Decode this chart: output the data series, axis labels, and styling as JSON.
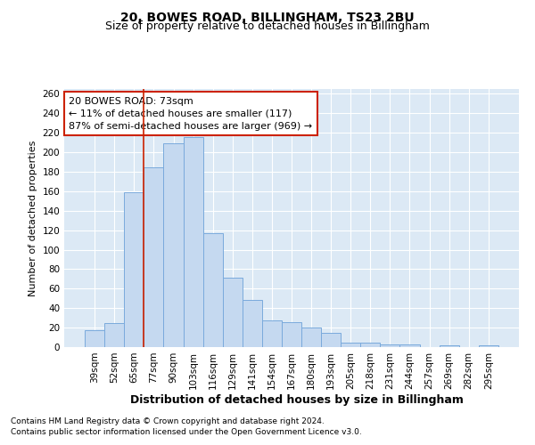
{
  "title1": "20, BOWES ROAD, BILLINGHAM, TS23 2BU",
  "title2": "Size of property relative to detached houses in Billingham",
  "xlabel": "Distribution of detached houses by size in Billingham",
  "ylabel": "Number of detached properties",
  "categories": [
    "39sqm",
    "52sqm",
    "65sqm",
    "77sqm",
    "90sqm",
    "103sqm",
    "116sqm",
    "129sqm",
    "141sqm",
    "154sqm",
    "167sqm",
    "180sqm",
    "193sqm",
    "205sqm",
    "218sqm",
    "231sqm",
    "244sqm",
    "257sqm",
    "269sqm",
    "282sqm",
    "295sqm"
  ],
  "values": [
    17,
    25,
    159,
    185,
    209,
    216,
    117,
    71,
    48,
    27,
    26,
    20,
    15,
    5,
    5,
    3,
    3,
    0,
    2,
    0,
    2
  ],
  "bar_color": "#c5d9f0",
  "bar_edge_color": "#7aaadc",
  "bg_color": "#dce9f5",
  "vline_x": 2.5,
  "vline_color": "#cc2200",
  "annotation_text": "20 BOWES ROAD: 73sqm\n← 11% of detached houses are smaller (117)\n87% of semi-detached houses are larger (969) →",
  "annotation_box_color": "#ffffff",
  "annotation_box_edge": "#cc2200",
  "ylim": [
    0,
    265
  ],
  "yticks": [
    0,
    20,
    40,
    60,
    80,
    100,
    120,
    140,
    160,
    180,
    200,
    220,
    240,
    260
  ],
  "footer1": "Contains HM Land Registry data © Crown copyright and database right 2024.",
  "footer2": "Contains public sector information licensed under the Open Government Licence v3.0.",
  "title1_fontsize": 10,
  "title2_fontsize": 9,
  "xlabel_fontsize": 9,
  "ylabel_fontsize": 8,
  "tick_fontsize": 7.5,
  "annotation_fontsize": 8,
  "footer_fontsize": 6.5
}
